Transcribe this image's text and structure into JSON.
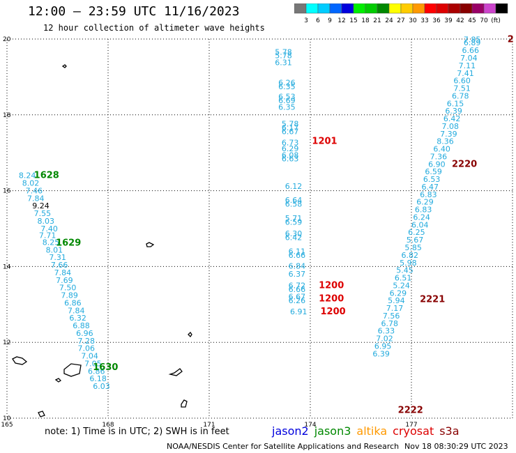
{
  "title": "12:00 – 23:59 UTC 11/16/2023",
  "subtitle": "12 hour collection of altimeter wave heights",
  "legend": {
    "colors": [
      "#777777",
      "#00ffff",
      "#00ccff",
      "#0066ff",
      "#0000dd",
      "#00ee00",
      "#00cc00",
      "#008800",
      "#ffff00",
      "#ffcc00",
      "#ff9900",
      "#ff0000",
      "#dd0000",
      "#aa0000",
      "#880000",
      "#990066",
      "#cc44cc",
      "#000000"
    ],
    "labels": [
      "3",
      "6",
      "9",
      "12",
      "15",
      "18",
      "21",
      "24",
      "27",
      "30",
      "33",
      "36",
      "39",
      "42",
      "45",
      "70",
      "(ft)"
    ]
  },
  "chart_data": {
    "type": "scatter",
    "xlim": [
      165,
      180
    ],
    "ylim": [
      10,
      20
    ],
    "x_ticks": [
      "165",
      "168",
      "171",
      "174",
      "177"
    ],
    "y_ticks": [
      "20",
      "18",
      "16",
      "14",
      "12",
      "10"
    ],
    "tracks": [
      {
        "satellite": "jason3",
        "color": "#008800",
        "time_labels": [
          {
            "text": "1628",
            "lon": 165.8,
            "lat": 16.33
          },
          {
            "text": "1629",
            "lon": 166.45,
            "lat": 14.55
          },
          {
            "text": "1630",
            "lon": 167.55,
            "lat": 11.27
          }
        ],
        "points": [
          {
            "v": "8.24",
            "lon": 165.35,
            "lat": 16.33
          },
          {
            "v": "8.02",
            "lon": 165.45,
            "lat": 16.13
          },
          {
            "v": "7.46",
            "lon": 165.55,
            "lat": 15.93
          },
          {
            "v": "7.84",
            "lon": 165.6,
            "lat": 15.73
          },
          {
            "v": "9.24",
            "lon": 165.75,
            "lat": 15.53,
            "c": "#000000"
          },
          {
            "v": "7.55",
            "lon": 165.8,
            "lat": 15.33
          },
          {
            "v": "8.03",
            "lon": 165.9,
            "lat": 15.13
          },
          {
            "v": "7.40",
            "lon": 166.0,
            "lat": 14.93
          },
          {
            "v": "7.71",
            "lon": 165.95,
            "lat": 14.75
          },
          {
            "v": "8.25",
            "lon": 166.05,
            "lat": 14.57
          },
          {
            "v": "8.01",
            "lon": 166.15,
            "lat": 14.37
          },
          {
            "v": "7.31",
            "lon": 166.25,
            "lat": 14.17
          },
          {
            "v": "7.66",
            "lon": 166.3,
            "lat": 13.97
          },
          {
            "v": "7.84",
            "lon": 166.4,
            "lat": 13.77
          },
          {
            "v": "7.69",
            "lon": 166.45,
            "lat": 13.57
          },
          {
            "v": "7.50",
            "lon": 166.55,
            "lat": 13.37
          },
          {
            "v": "7.89",
            "lon": 166.6,
            "lat": 13.17
          },
          {
            "v": "6.86",
            "lon": 166.7,
            "lat": 12.97
          },
          {
            "v": "7.84",
            "lon": 166.8,
            "lat": 12.77
          },
          {
            "v": "6.32",
            "lon": 166.85,
            "lat": 12.57
          },
          {
            "v": "6.88",
            "lon": 166.95,
            "lat": 12.37
          },
          {
            "v": "6.96",
            "lon": 167.05,
            "lat": 12.17
          },
          {
            "v": "7.28",
            "lon": 167.1,
            "lat": 11.97
          },
          {
            "v": "7.06",
            "lon": 167.1,
            "lat": 11.77
          },
          {
            "v": "7.04",
            "lon": 167.2,
            "lat": 11.57
          },
          {
            "v": "7.05",
            "lon": 167.3,
            "lat": 11.37
          },
          {
            "v": "6.86",
            "lon": 167.4,
            "lat": 11.17
          },
          {
            "v": "6.18",
            "lon": 167.45,
            "lat": 10.97
          },
          {
            "v": "6.03",
            "lon": 167.55,
            "lat": 10.77
          }
        ]
      },
      {
        "satellite": "jason2",
        "color": "#0000dd",
        "time_labels": [],
        "points": []
      },
      {
        "satellite": "cryosat",
        "color": "#dd0000",
        "time_labels": [
          {
            "text": "1201",
            "lon": 174.05,
            "lat": 17.23
          },
          {
            "text": "1200",
            "lon": 174.25,
            "lat": 13.43
          },
          {
            "text": "1200",
            "lon": 174.25,
            "lat": 13.08
          },
          {
            "text": "1200",
            "lon": 174.3,
            "lat": 12.74
          }
        ],
        "points": [
          {
            "v": "5.78",
            "lon": 172.95,
            "lat": 19.59
          },
          {
            "v": "5.78",
            "lon": 172.95,
            "lat": 19.49
          },
          {
            "v": "6.31",
            "lon": 172.95,
            "lat": 19.31
          },
          {
            "v": "6.26",
            "lon": 173.05,
            "lat": 18.78
          },
          {
            "v": "6.35",
            "lon": 173.05,
            "lat": 18.68
          },
          {
            "v": "6.53",
            "lon": 173.05,
            "lat": 18.41
          },
          {
            "v": "6.69",
            "lon": 173.05,
            "lat": 18.31
          },
          {
            "v": "6.35",
            "lon": 173.05,
            "lat": 18.13
          },
          {
            "v": "5.78",
            "lon": 173.15,
            "lat": 17.69
          },
          {
            "v": "6.17",
            "lon": 173.15,
            "lat": 17.59
          },
          {
            "v": "6.67",
            "lon": 173.15,
            "lat": 17.49
          },
          {
            "v": "6.73",
            "lon": 173.15,
            "lat": 17.2
          },
          {
            "v": "6.29",
            "lon": 173.15,
            "lat": 17.04
          },
          {
            "v": "6.08",
            "lon": 173.15,
            "lat": 16.87
          },
          {
            "v": "6.63",
            "lon": 173.15,
            "lat": 16.77
          },
          {
            "v": "6.12",
            "lon": 173.25,
            "lat": 16.05
          },
          {
            "v": "6.64",
            "lon": 173.25,
            "lat": 15.68
          },
          {
            "v": "6.58",
            "lon": 173.25,
            "lat": 15.58
          },
          {
            "v": "5.71",
            "lon": 173.25,
            "lat": 15.2
          },
          {
            "v": "6.59",
            "lon": 173.25,
            "lat": 15.1
          },
          {
            "v": "6.30",
            "lon": 173.25,
            "lat": 14.8
          },
          {
            "v": "6.42",
            "lon": 173.25,
            "lat": 14.7
          },
          {
            "v": "6.11",
            "lon": 173.35,
            "lat": 14.33
          },
          {
            "v": "6.66",
            "lon": 173.35,
            "lat": 14.23
          },
          {
            "v": "6.84",
            "lon": 173.35,
            "lat": 13.94
          },
          {
            "v": "6.37",
            "lon": 173.35,
            "lat": 13.73
          },
          {
            "v": "6.72",
            "lon": 173.35,
            "lat": 13.43
          },
          {
            "v": "6.66",
            "lon": 173.35,
            "lat": 13.33
          },
          {
            "v": "6.67",
            "lon": 173.35,
            "lat": 13.13
          },
          {
            "v": "6.26",
            "lon": 173.35,
            "lat": 13.03
          },
          {
            "v": "6.91",
            "lon": 173.4,
            "lat": 12.74
          }
        ]
      },
      {
        "satellite": "s3a",
        "color": "#880000",
        "time_labels": [
          {
            "text": "2",
            "lon": 179.85,
            "lat": 19.92
          },
          {
            "text": "2220",
            "lon": 178.2,
            "lat": 16.63
          },
          {
            "text": "2221",
            "lon": 177.25,
            "lat": 13.06
          },
          {
            "text": "2222",
            "lon": 176.6,
            "lat": 10.14
          }
        ],
        "points": [
          {
            "v": "7.85",
            "lon": 178.55,
            "lat": 19.92
          },
          {
            "v": "6.89",
            "lon": 178.55,
            "lat": 19.83
          },
          {
            "v": "6.66",
            "lon": 178.5,
            "lat": 19.63
          },
          {
            "v": "7.04",
            "lon": 178.45,
            "lat": 19.43
          },
          {
            "v": "7.11",
            "lon": 178.4,
            "lat": 19.23
          },
          {
            "v": "7.41",
            "lon": 178.35,
            "lat": 19.03
          },
          {
            "v": "6.60",
            "lon": 178.25,
            "lat": 18.83
          },
          {
            "v": "7.51",
            "lon": 178.25,
            "lat": 18.63
          },
          {
            "v": "6.78",
            "lon": 178.2,
            "lat": 18.43
          },
          {
            "v": "6.15",
            "lon": 178.05,
            "lat": 18.23
          },
          {
            "v": "6.39",
            "lon": 178.0,
            "lat": 18.03
          },
          {
            "v": "6.42",
            "lon": 177.95,
            "lat": 17.83
          },
          {
            "v": "7.08",
            "lon": 177.9,
            "lat": 17.63
          },
          {
            "v": "7.39",
            "lon": 177.85,
            "lat": 17.43
          },
          {
            "v": "8.36",
            "lon": 177.75,
            "lat": 17.23
          },
          {
            "v": "6.40",
            "lon": 177.65,
            "lat": 17.03
          },
          {
            "v": "7.36",
            "lon": 177.55,
            "lat": 16.83
          },
          {
            "v": "6.90",
            "lon": 177.5,
            "lat": 16.63
          },
          {
            "v": "6.59",
            "lon": 177.4,
            "lat": 16.43
          },
          {
            "v": "6.53",
            "lon": 177.35,
            "lat": 16.23
          },
          {
            "v": "6.47",
            "lon": 177.3,
            "lat": 16.03
          },
          {
            "v": "6.83",
            "lon": 177.25,
            "lat": 15.83
          },
          {
            "v": "6.29",
            "lon": 177.15,
            "lat": 15.63
          },
          {
            "v": "6.83",
            "lon": 177.1,
            "lat": 15.43
          },
          {
            "v": "6.24",
            "lon": 177.05,
            "lat": 15.23
          },
          {
            "v": "6.04",
            "lon": 177.0,
            "lat": 15.03
          },
          {
            "v": "6.25",
            "lon": 176.9,
            "lat": 14.83
          },
          {
            "v": "5.67",
            "lon": 176.85,
            "lat": 14.63
          },
          {
            "v": "5.85",
            "lon": 176.8,
            "lat": 14.43
          },
          {
            "v": "6.82",
            "lon": 176.7,
            "lat": 14.23
          },
          {
            "v": "5.98",
            "lon": 176.65,
            "lat": 14.03
          },
          {
            "v": "5.45",
            "lon": 176.55,
            "lat": 13.83
          },
          {
            "v": "6.51",
            "lon": 176.5,
            "lat": 13.63
          },
          {
            "v": "5.24",
            "lon": 176.45,
            "lat": 13.43
          },
          {
            "v": "6.29",
            "lon": 176.35,
            "lat": 13.23
          },
          {
            "v": "5.94",
            "lon": 176.3,
            "lat": 13.03
          },
          {
            "v": "7.17",
            "lon": 176.25,
            "lat": 12.83
          },
          {
            "v": "7.56",
            "lon": 176.15,
            "lat": 12.63
          },
          {
            "v": "6.78",
            "lon": 176.1,
            "lat": 12.43
          },
          {
            "v": "6.33",
            "lon": 176.0,
            "lat": 12.23
          },
          {
            "v": "7.02",
            "lon": 175.95,
            "lat": 12.03
          },
          {
            "v": "6.95",
            "lon": 175.9,
            "lat": 11.83
          },
          {
            "v": "6.39",
            "lon": 175.85,
            "lat": 11.63
          }
        ]
      }
    ]
  },
  "note": "note: 1) Time is in UTC; 2) SWH is in feet",
  "satellites": [
    {
      "name": "jason2",
      "color": "#0000dd"
    },
    {
      "name": "jason3",
      "color": "#008800"
    },
    {
      "name": "altika",
      "color": "#ff9900"
    },
    {
      "name": "cryosat",
      "color": "#dd0000"
    },
    {
      "name": "s3a",
      "color": "#880000"
    }
  ],
  "footer": {
    "source": "NOAA/NESDIS Center for Satellite Applications and Research",
    "timestamp": "Nov 18 08:30:29 UTC 2023"
  }
}
